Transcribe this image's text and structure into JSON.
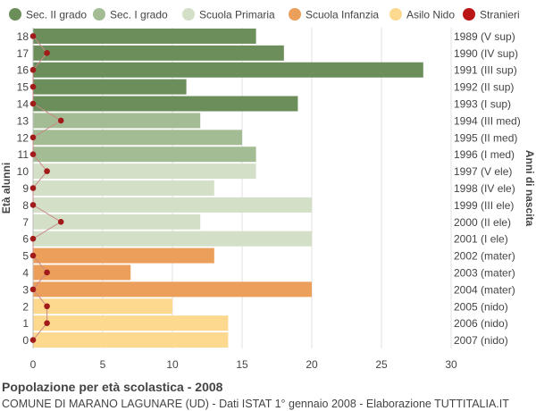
{
  "chart_data": {
    "type": "bar",
    "orientation": "horizontal",
    "ylabel": "Età alunni",
    "ylabel_right": "Anni di nascita",
    "xlim": [
      0,
      30
    ],
    "x_ticks": [
      "0",
      "5",
      "10",
      "15",
      "20",
      "25",
      "30"
    ],
    "grid": true,
    "legend_position": "top",
    "legend": [
      {
        "name": "Sec. II grado",
        "color": "#6b8e5a"
      },
      {
        "name": "Sec. I grado",
        "color": "#a3bc93"
      },
      {
        "name": "Scuola Primaria",
        "color": "#d3e0c7"
      },
      {
        "name": "Scuola Infanzia",
        "color": "#eb9f5a"
      },
      {
        "name": "Asilo Nido",
        "color": "#fdd88f"
      },
      {
        "name": "Stranieri",
        "color": "#bb1616"
      }
    ],
    "rows": [
      {
        "age": "18",
        "birth": "1989 (V sup)",
        "value": 16,
        "stranieri": 0,
        "group": 0
      },
      {
        "age": "17",
        "birth": "1990 (IV sup)",
        "value": 18,
        "stranieri": 1,
        "group": 0
      },
      {
        "age": "16",
        "birth": "1991 (III sup)",
        "value": 28,
        "stranieri": 0,
        "group": 0
      },
      {
        "age": "15",
        "birth": "1992 (II sup)",
        "value": 11,
        "stranieri": 0,
        "group": 0
      },
      {
        "age": "14",
        "birth": "1993 (I sup)",
        "value": 19,
        "stranieri": 0,
        "group": 0
      },
      {
        "age": "13",
        "birth": "1994 (III med)",
        "value": 12,
        "stranieri": 2,
        "group": 1
      },
      {
        "age": "12",
        "birth": "1995 (II med)",
        "value": 15,
        "stranieri": 0,
        "group": 1
      },
      {
        "age": "11",
        "birth": "1996 (I med)",
        "value": 16,
        "stranieri": 0,
        "group": 1
      },
      {
        "age": "10",
        "birth": "1997 (V ele)",
        "value": 16,
        "stranieri": 1,
        "group": 2
      },
      {
        "age": "9",
        "birth": "1998 (IV ele)",
        "value": 13,
        "stranieri": 0,
        "group": 2
      },
      {
        "age": "8",
        "birth": "1999 (III ele)",
        "value": 20,
        "stranieri": 0,
        "group": 2
      },
      {
        "age": "7",
        "birth": "2000 (II ele)",
        "value": 12,
        "stranieri": 2,
        "group": 2
      },
      {
        "age": "6",
        "birth": "2001 (I ele)",
        "value": 20,
        "stranieri": 0,
        "group": 2
      },
      {
        "age": "5",
        "birth": "2002 (mater)",
        "value": 13,
        "stranieri": 0,
        "group": 3
      },
      {
        "age": "4",
        "birth": "2003 (mater)",
        "value": 7,
        "stranieri": 1,
        "group": 3
      },
      {
        "age": "3",
        "birth": "2004 (mater)",
        "value": 20,
        "stranieri": 0,
        "group": 3
      },
      {
        "age": "2",
        "birth": "2005 (nido)",
        "value": 10,
        "stranieri": 1,
        "group": 4
      },
      {
        "age": "1",
        "birth": "2006 (nido)",
        "value": 14,
        "stranieri": 1,
        "group": 4
      },
      {
        "age": "0",
        "birth": "2007 (nido)",
        "value": 14,
        "stranieri": 0,
        "group": 4
      }
    ]
  },
  "footer": {
    "title": "Popolazione per età scolastica - 2008",
    "subtitle": "COMUNE DI MARANO LAGUNARE (UD) - Dati ISTAT 1° gennaio 2008 - Elaborazione TUTTITALIA.IT"
  }
}
